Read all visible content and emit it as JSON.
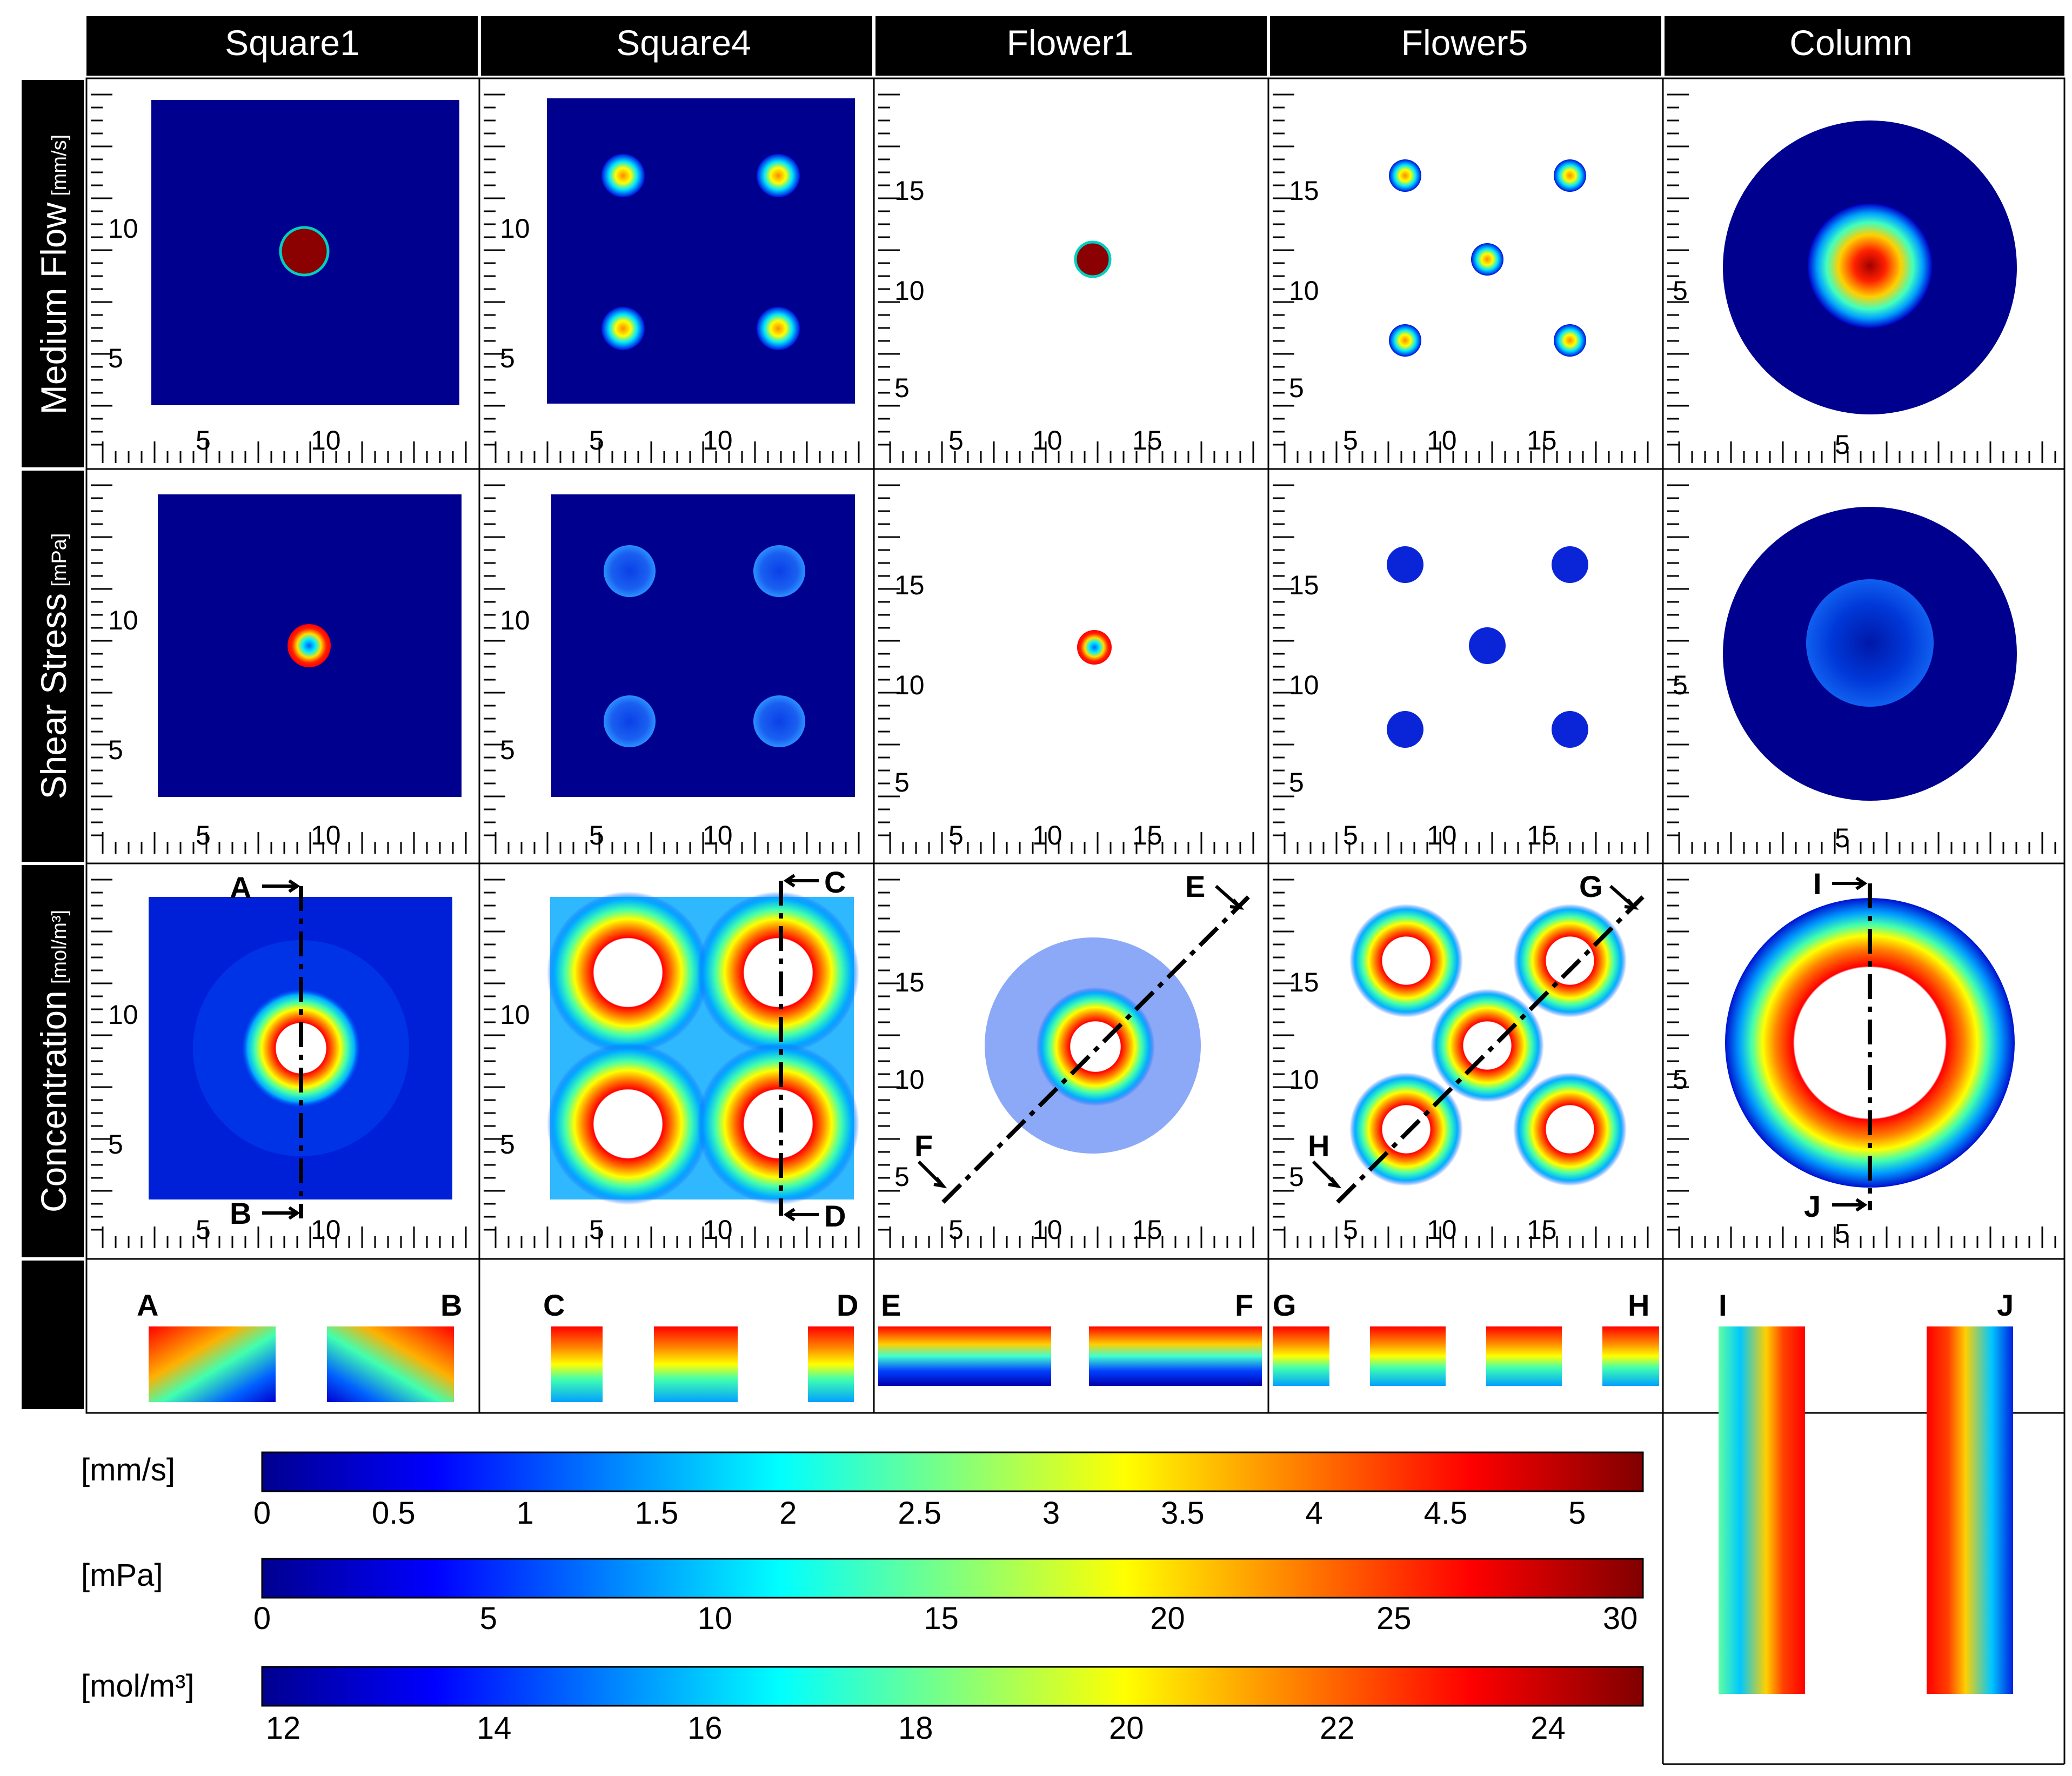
{
  "columns": [
    "Square1",
    "Square4",
    "Flower1",
    "Flower5",
    "Column"
  ],
  "rows": [
    {
      "label": "Medium Flow",
      "unit": "[mm/s]"
    },
    {
      "label": "Shear Stress",
      "unit": "[mPa]"
    },
    {
      "label": "Concentration",
      "unit": "[mol/m³]"
    }
  ],
  "axis_ticks": {
    "Square1": {
      "x": [
        "5",
        "10"
      ],
      "y": [
        "10",
        "5"
      ]
    },
    "Square4": {
      "x": [
        "5",
        "10"
      ],
      "y": [
        "10",
        "5"
      ]
    },
    "Flower1": {
      "x": [
        "5",
        "10",
        "15"
      ],
      "y": [
        "15",
        "10",
        "5"
      ]
    },
    "Flower5": {
      "x": [
        "5",
        "10",
        "15"
      ],
      "y": [
        "15",
        "10",
        "5"
      ]
    },
    "Column": {
      "x": [
        "5"
      ],
      "y": [
        "5"
      ]
    }
  },
  "section_markers": {
    "Square1": [
      "A",
      "B"
    ],
    "Square4": [
      "C",
      "D"
    ],
    "Flower1": [
      "E",
      "F"
    ],
    "Flower5": [
      "G",
      "H"
    ],
    "Column": [
      "I",
      "J"
    ]
  },
  "colorbars": [
    {
      "unit": "[mm/s]",
      "ticks": [
        "0",
        "0.5",
        "1",
        "1.5",
        "2",
        "2.5",
        "3",
        "3.5",
        "4",
        "4.5",
        "5"
      ],
      "min": 0,
      "max": 5.25
    },
    {
      "unit": "[mPa]",
      "ticks": [
        "0",
        "5",
        "10",
        "15",
        "20",
        "25",
        "30"
      ],
      "min": 0,
      "max": 30.5
    },
    {
      "unit": "[mol/m³]",
      "ticks": [
        "12",
        "14",
        "16",
        "18",
        "20",
        "22",
        "24"
      ],
      "min": 11.8,
      "max": 24.9
    }
  ],
  "colormap": [
    "#00008f",
    "#0000ff",
    "#00ffff",
    "#ffff00",
    "#ff0000",
    "#800000"
  ]
}
